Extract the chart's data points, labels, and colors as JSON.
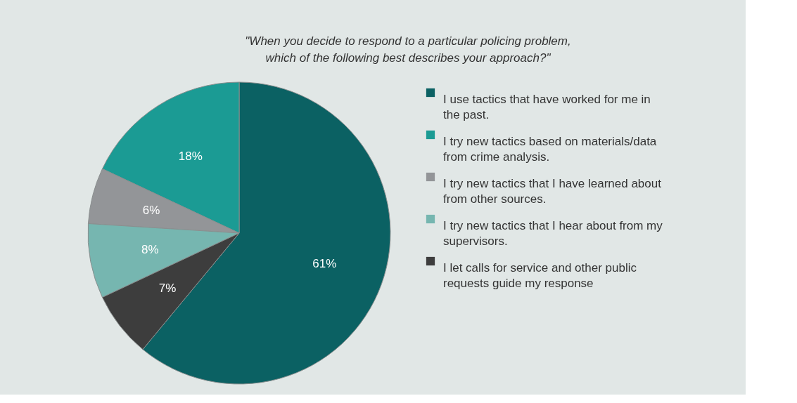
{
  "chart_data": {
    "type": "pie",
    "title": "\"When you decide to respond to a particular policing problem, which of the following best describes your approach?\"",
    "categories": [
      "I use tactics that have worked for me in the past.",
      "I try new tactics based on materials/data from crime analysis.",
      "I try new tactics that I have learned about from other sources.",
      "I try new tactics that I hear about from my supervisors.",
      "I let calls for service and other public requests guide my response"
    ],
    "values": [
      61,
      18,
      6,
      8,
      7
    ],
    "value_labels": [
      "61%",
      "18%",
      "6%",
      "8%",
      "7%"
    ],
    "colors": [
      "#0b6163",
      "#1b9b94",
      "#939598",
      "#76b6b0",
      "#3d3d3d"
    ],
    "legend": "right"
  }
}
